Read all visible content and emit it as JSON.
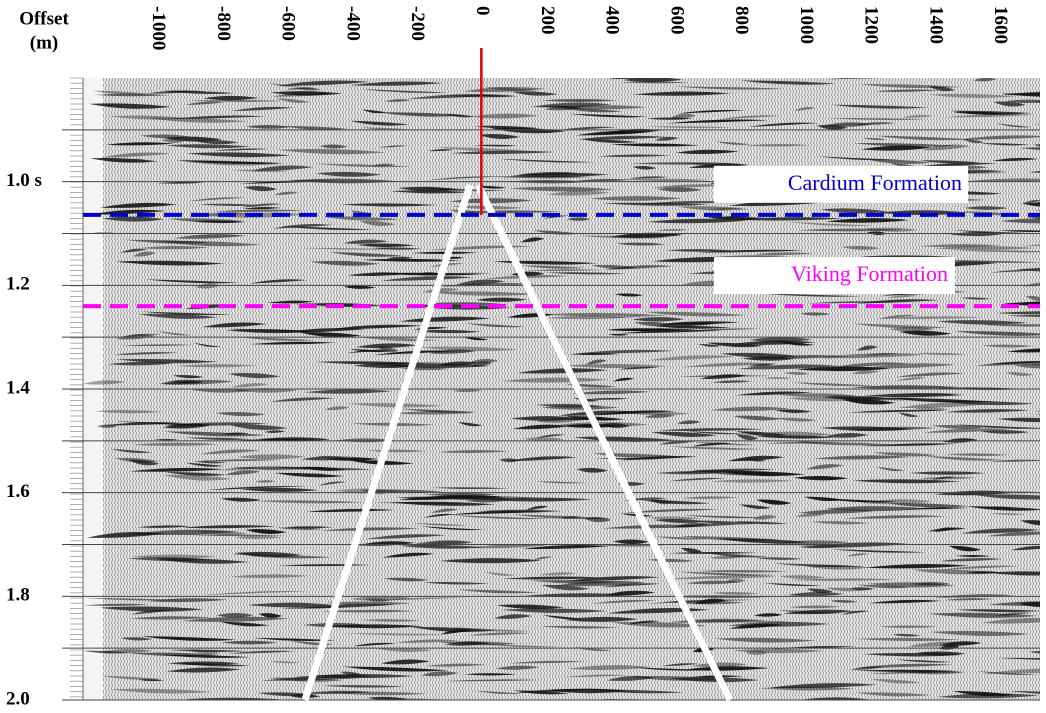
{
  "chart_data": {
    "type": "seismic",
    "xlabel": "Offset",
    "xlabel_unit": "(m)",
    "xlim": [
      -1230,
      1725
    ],
    "xticks": [
      -1000,
      -800,
      -600,
      -400,
      -200,
      0,
      200,
      400,
      600,
      800,
      1000,
      1200,
      1400,
      1600
    ],
    "ylim": [
      0.8,
      2.0
    ],
    "yticks": [
      {
        "value": 1.0,
        "label": "1.0 s"
      },
      1.2,
      1.4,
      1.6,
      1.8,
      {
        "value": 2.0,
        "label": "2.0"
      }
    ],
    "y_gridlines": [
      0.9,
      1.0,
      1.1,
      1.2,
      1.3,
      1.4,
      1.5,
      1.6,
      1.7,
      1.8,
      1.9,
      2.0
    ],
    "source_offset": 0,
    "source_color": "#dd0000",
    "horizons": [
      {
        "text": "Cardium Formation",
        "time": 1.064,
        "color": "#0000cc"
      },
      {
        "text": "Viking Formation",
        "time": 1.24,
        "color": "#ff00ff"
      }
    ]
  }
}
